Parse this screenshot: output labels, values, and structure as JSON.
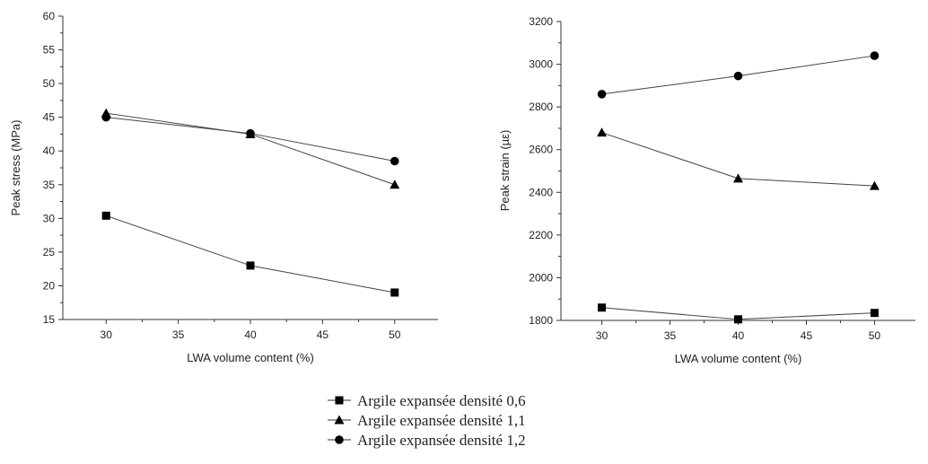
{
  "chart_data": [
    {
      "type": "line",
      "xlabel": "LWA volume content (%)",
      "ylabel": "Peak stress (MPa)",
      "xlim": [
        27,
        53
      ],
      "ylim": [
        15,
        60
      ],
      "xticks": [
        30,
        35,
        40,
        45,
        50
      ],
      "yticks": [
        15,
        20,
        25,
        30,
        35,
        40,
        45,
        50,
        55,
        60
      ],
      "x": [
        30,
        40,
        50
      ],
      "series": [
        {
          "name": "Argile expansée densité 0,6",
          "marker": "square",
          "values": [
            30.4,
            23.0,
            19.0
          ]
        },
        {
          "name": "Argile expansée densité 1,1",
          "marker": "triangle",
          "values": [
            45.6,
            42.5,
            35.0
          ]
        },
        {
          "name": "Argile expansée densité 1,2",
          "marker": "circle",
          "values": [
            45.0,
            42.6,
            38.5
          ]
        }
      ]
    },
    {
      "type": "line",
      "xlabel": "LWA volume content (%)",
      "ylabel": "Peak strain (µε)",
      "xlim": [
        27,
        53
      ],
      "ylim": [
        1800,
        3200
      ],
      "xticks": [
        30,
        35,
        40,
        45,
        50
      ],
      "yticks": [
        1800,
        2000,
        2200,
        2400,
        2600,
        2800,
        3000,
        3200
      ],
      "x": [
        30,
        40,
        50
      ],
      "series": [
        {
          "name": "Argile expansée densité 0,6",
          "marker": "square",
          "values": [
            1860,
            1805,
            1835
          ]
        },
        {
          "name": "Argile expansée densité 1,1",
          "marker": "triangle",
          "values": [
            2680,
            2465,
            2430
          ]
        },
        {
          "name": "Argile expansée densité 1,2",
          "marker": "circle",
          "values": [
            2860,
            2945,
            3040
          ]
        }
      ]
    }
  ],
  "legend": {
    "items": [
      {
        "label": "Argile expansée densité 0,6",
        "marker": "square"
      },
      {
        "label": "Argile expansée densité 1,1",
        "marker": "triangle"
      },
      {
        "label": "Argile expansée densité 1,2",
        "marker": "circle"
      }
    ]
  }
}
